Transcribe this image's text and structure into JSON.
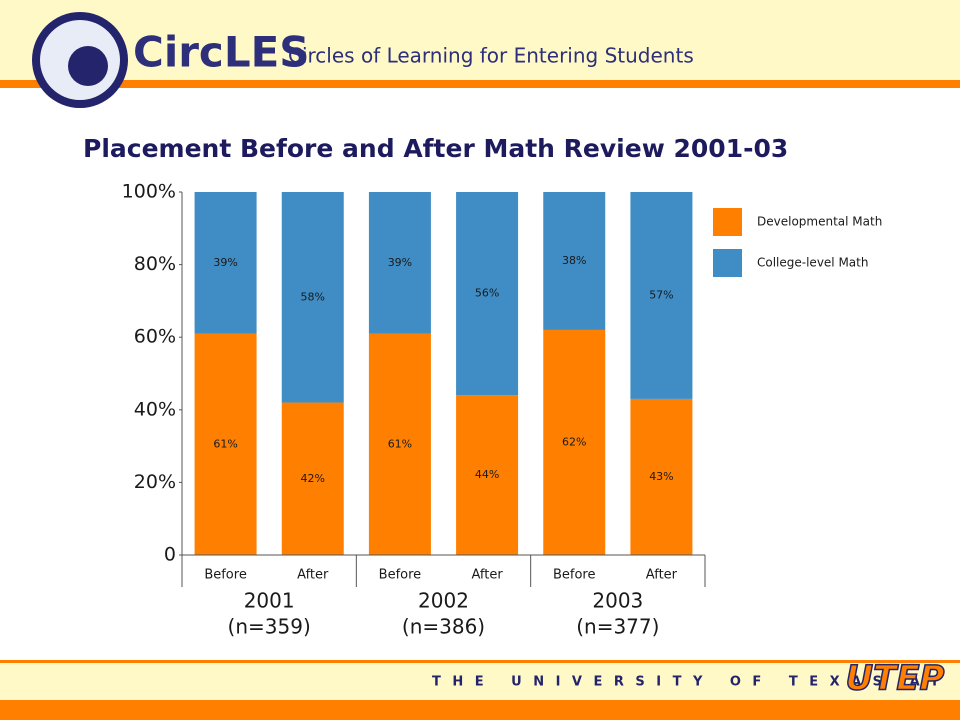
{
  "header": {
    "logo": "CircLES",
    "tagline": "Circles of Learning for Entering Students"
  },
  "footer": {
    "university": "THE UNIVERSITY OF TEXAS AT EL PASO",
    "logo": "UTEP"
  },
  "chart_data": {
    "type": "stacked-bar",
    "title": "Placement Before and After Math Review 2001-03",
    "categories": [
      "Before",
      "After",
      "Before",
      "After",
      "Before",
      "After"
    ],
    "groups": [
      {
        "label": "2001",
        "note": "(n=359)"
      },
      {
        "label": "2002",
        "note": "(n=386)"
      },
      {
        "label": "2003",
        "note": "(n=377)"
      }
    ],
    "series": [
      {
        "name": "Developmental Math",
        "color": "#ff8000",
        "values": [
          61,
          42,
          61,
          44,
          62,
          43
        ],
        "value_labels": [
          "61%",
          "42%",
          "61%",
          "44%",
          "62%",
          "43%"
        ]
      },
      {
        "name": "College-level Math",
        "color": "#3f8dc4",
        "values": [
          39,
          58,
          39,
          56,
          38,
          57
        ],
        "value_labels": [
          "39%",
          "58%",
          "39%",
          "56%",
          "38%",
          "57%"
        ]
      }
    ],
    "ylim": [
      0,
      100
    ],
    "yticks": [
      0,
      {
        "value": 20,
        "label": "20%"
      },
      {
        "value": 40,
        "label": "40%"
      },
      {
        "value": 60,
        "label": "60%"
      },
      {
        "value": 80,
        "label": "80%"
      },
      {
        "value": 100,
        "label": "100%"
      }
    ],
    "legend": "right"
  }
}
